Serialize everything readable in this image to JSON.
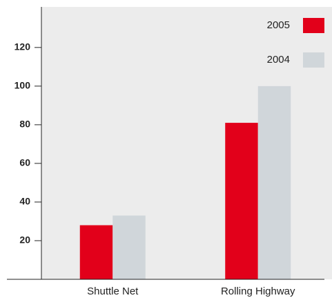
{
  "chart_data": {
    "type": "bar",
    "categories": [
      "Shuttle Net",
      "Rolling Highway"
    ],
    "series": [
      {
        "name": "2005",
        "color": "#e2001a",
        "values": [
          28,
          81
        ]
      },
      {
        "name": "2004",
        "color": "#d0d6da",
        "values": [
          33,
          100
        ]
      }
    ],
    "ylim": [
      0,
      141
    ],
    "yticks": [
      20,
      40,
      60,
      80,
      100,
      120
    ]
  }
}
